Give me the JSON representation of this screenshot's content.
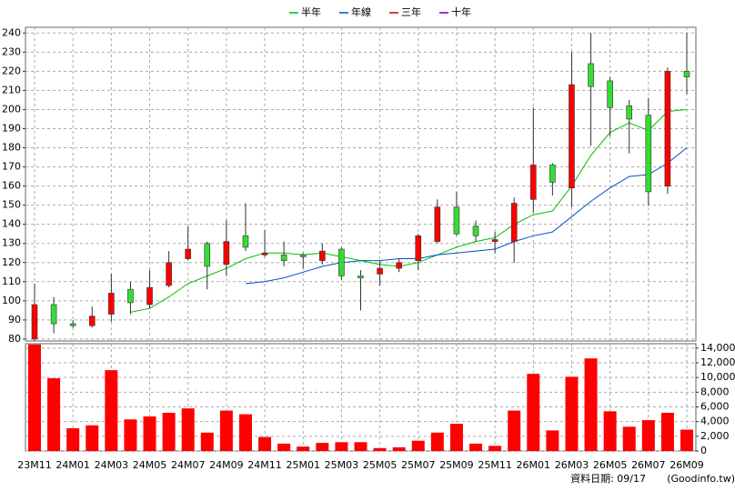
{
  "chart_data": [
    {
      "type": "candlestick",
      "categories": [
        "23M11",
        null,
        "24M01",
        null,
        "24M03",
        null,
        "24M05",
        null,
        "24M07",
        null,
        "24M09",
        null,
        "24M11",
        null,
        "25M01",
        null,
        "25M03",
        null,
        "25M05",
        null,
        "25M07",
        null,
        "25M09",
        null,
        "25M11",
        null,
        "26M01",
        null,
        "26M03",
        null,
        "26M05",
        null,
        "26M07",
        null,
        "26M09"
      ],
      "open": [
        80,
        98,
        88,
        87,
        93,
        106,
        98,
        108,
        122,
        130,
        119,
        134,
        124,
        124,
        124,
        121,
        127,
        113,
        114,
        117,
        121,
        131,
        149,
        139,
        131,
        131,
        153,
        171,
        159,
        224,
        215,
        202,
        197,
        160,
        220
      ],
      "high": [
        109,
        102,
        90,
        97,
        114,
        110,
        116,
        126,
        139,
        131,
        142,
        151,
        137,
        131,
        125,
        130,
        128,
        116,
        121,
        122,
        135,
        153,
        157,
        142,
        136,
        154,
        201,
        172,
        230,
        240,
        217,
        205,
        206,
        222,
        240
      ],
      "low": [
        79,
        83,
        86,
        86,
        89,
        93,
        96,
        107,
        121,
        106,
        113,
        126,
        123,
        118,
        117,
        119,
        111,
        95,
        108,
        115,
        116,
        130,
        134,
        131,
        125,
        120,
        146,
        155,
        149,
        181,
        186,
        177,
        150,
        156,
        208
      ],
      "close": [
        98,
        88,
        87,
        92,
        104,
        99,
        107,
        120,
        127,
        118,
        131,
        128,
        125,
        121,
        123,
        126,
        113,
        112,
        117,
        120,
        134,
        149,
        135,
        134,
        132,
        151,
        171,
        162,
        213,
        212,
        201,
        195,
        157,
        220,
        217
      ],
      "up_color": "#ff0000",
      "down_color": "#33dd33",
      "series": [
        {
          "name": "半年",
          "color": "#00c000",
          "values": [
            null,
            null,
            null,
            null,
            null,
            94,
            96,
            102,
            109,
            113,
            117,
            122,
            125,
            125,
            124,
            125,
            123,
            121,
            119,
            118,
            120,
            124,
            128,
            131,
            133,
            140,
            145,
            147,
            160,
            176,
            188,
            193,
            189,
            199,
            200
          ]
        },
        {
          "name": "年線",
          "color": "#0050c8",
          "values": [
            null,
            null,
            null,
            null,
            null,
            null,
            null,
            null,
            null,
            null,
            null,
            109,
            110,
            112,
            115,
            118,
            120,
            121,
            121,
            122,
            122,
            124,
            125,
            126,
            127,
            131,
            134,
            136,
            144,
            152,
            159,
            165,
            166,
            172,
            180
          ]
        },
        {
          "name": "三年",
          "color": "#cc0000"
        },
        {
          "name": "十年",
          "color": "#6a00cc"
        }
      ],
      "ylim": [
        79,
        243
      ],
      "yticks": [
        80,
        90,
        100,
        110,
        120,
        130,
        140,
        150,
        160,
        170,
        180,
        190,
        200,
        210,
        220,
        230,
        240
      ],
      "grid": true
    },
    {
      "type": "bar",
      "color": "#ff0000",
      "values": [
        14500,
        9900,
        3100,
        3500,
        11000,
        4300,
        4700,
        5200,
        5800,
        2500,
        5500,
        5000,
        1900,
        1000,
        600,
        1100,
        1200,
        1200,
        400,
        500,
        1400,
        2500,
        3700,
        1000,
        700,
        5500,
        10500,
        2800,
        10100,
        12600,
        5400,
        3300,
        4200,
        5200,
        2900
      ],
      "ylim": [
        0,
        14600
      ],
      "yticks": [
        0,
        {
          "value": 2000,
          "label": "2,000"
        },
        {
          "value": 4000,
          "label": "4,000"
        },
        {
          "value": 6000,
          "label": "6,000"
        },
        {
          "value": 8000,
          "label": "8,000"
        },
        {
          "value": 10000,
          "label": "10,000"
        },
        {
          "value": 12000,
          "label": "12,000"
        },
        {
          "value": 14000,
          "label": "14,000"
        }
      ],
      "grid": true,
      "source_note": "資料日期: 09/17",
      "watermark": "(Goodinfo.tw)"
    }
  ]
}
